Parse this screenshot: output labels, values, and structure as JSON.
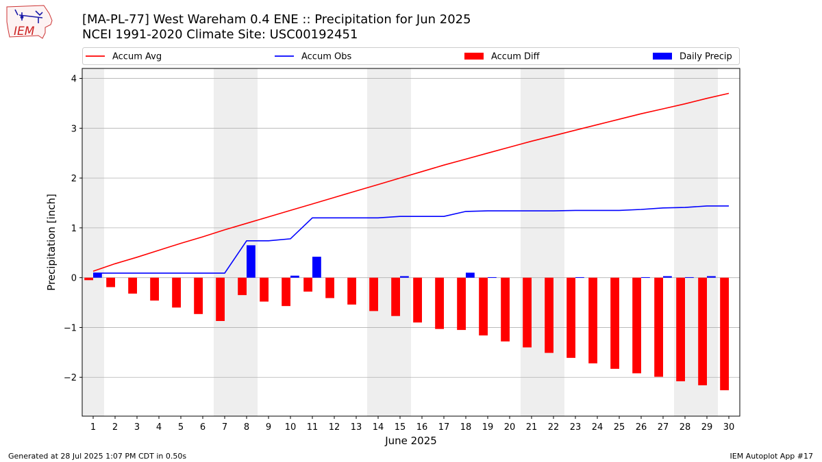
{
  "header": {
    "title_line1": "[MA-PL-77] West Wareham 0.4 ENE :: Precipitation for Jun 2025",
    "title_line2": "NCEI 1991-2020 Climate Site: USC00192451",
    "logo_text": "IEM"
  },
  "footer": {
    "generated": "Generated at 28 Jul 2025 1:07 PM CDT in 0.50s",
    "app": "IEM Autoplot App #17"
  },
  "colors": {
    "accum_avg": "#ff0000",
    "accum_obs": "#0000ff",
    "accum_diff": "#ff0000",
    "daily_precip": "#0000ff",
    "weekend_shade": "#eeeeee",
    "grid": "#b0b0b0"
  },
  "chart_data": {
    "type": "bar",
    "xlabel": "June 2025",
    "ylabel": "Precipitation [inch]",
    "ylim": [
      -2.78,
      4.2
    ],
    "yticks": [
      -2,
      -1,
      0,
      1,
      2,
      3,
      4
    ],
    "ytick_labels": [
      "−2",
      "−1",
      "0",
      "1",
      "2",
      "3",
      "4"
    ],
    "grid": "horizontal",
    "legend_position": "top",
    "x": [
      1,
      2,
      3,
      4,
      5,
      6,
      7,
      8,
      9,
      10,
      11,
      12,
      13,
      14,
      15,
      16,
      17,
      18,
      19,
      20,
      21,
      22,
      23,
      24,
      25,
      26,
      27,
      28,
      29,
      30
    ],
    "x_tick_labels": [
      "1",
      "2",
      "3",
      "4",
      "5",
      "6",
      "7",
      "8",
      "9",
      "10",
      "11",
      "12",
      "13",
      "14",
      "15",
      "16",
      "17",
      "18",
      "19",
      "20",
      "21",
      "22",
      "23",
      "24",
      "25",
      "26",
      "27",
      "28",
      "29",
      "30"
    ],
    "weekend_days": [
      1,
      7,
      8,
      14,
      15,
      21,
      22,
      28,
      29
    ],
    "series": [
      {
        "name": "Accum Avg",
        "kind": "line",
        "values": [
          0.13,
          0.28,
          0.41,
          0.55,
          0.69,
          0.82,
          0.96,
          1.09,
          1.22,
          1.35,
          1.48,
          1.61,
          1.74,
          1.87,
          2.0,
          2.13,
          2.26,
          2.38,
          2.5,
          2.62,
          2.74,
          2.85,
          2.96,
          3.07,
          3.18,
          3.29,
          3.39,
          3.49,
          3.6,
          3.7
        ]
      },
      {
        "name": "Accum Obs",
        "kind": "line",
        "values": [
          0.09,
          0.09,
          0.09,
          0.09,
          0.09,
          0.09,
          0.09,
          0.74,
          0.74,
          0.78,
          1.2,
          1.2,
          1.2,
          1.2,
          1.23,
          1.23,
          1.23,
          1.33,
          1.34,
          1.34,
          1.34,
          1.34,
          1.35,
          1.35,
          1.35,
          1.37,
          1.4,
          1.41,
          1.44,
          1.44
        ]
      },
      {
        "name": "Accum Diff",
        "kind": "bar",
        "values": [
          -0.05,
          -0.19,
          -0.32,
          -0.46,
          -0.6,
          -0.73,
          -0.87,
          -0.35,
          -0.48,
          -0.57,
          -0.28,
          -0.41,
          -0.54,
          -0.67,
          -0.77,
          -0.9,
          -1.03,
          -1.05,
          -1.16,
          -1.28,
          -1.4,
          -1.51,
          -1.61,
          -1.72,
          -1.83,
          -1.92,
          -1.99,
          -2.08,
          -2.16,
          -2.26
        ]
      },
      {
        "name": "Daily Precip",
        "kind": "bar",
        "values": [
          0.09,
          0,
          0,
          0,
          0,
          0,
          0,
          0.65,
          0,
          0.04,
          0.42,
          0,
          0,
          0,
          0.03,
          0,
          0,
          0.1,
          0.01,
          0,
          0,
          0,
          0.01,
          0,
          0,
          0.01,
          0.03,
          0.01,
          0.03,
          0
        ]
      }
    ]
  }
}
